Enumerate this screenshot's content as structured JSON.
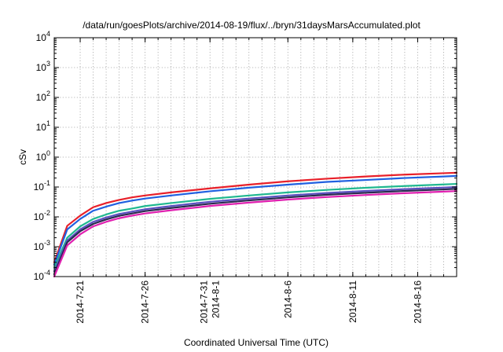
{
  "chart_data": {
    "type": "line",
    "title": "/data/run/goesPlots/archive/2014-08-19/flux/../bryn/31daysMarsAccumulated.plot",
    "xlabel": "Coordinated Universal Time (UTC)",
    "ylabel": "cSv",
    "x_type": "date",
    "xlim": [
      "2014-07-19",
      "2014-08-19"
    ],
    "ylim": [
      0.0001,
      10000
    ],
    "yscale": "log",
    "grid": true,
    "x_ticks": [
      {
        "date": "2014-07-21",
        "label": [
          "2014-7-21"
        ]
      },
      {
        "date": "2014-07-26",
        "label": [
          "2014-7-26"
        ]
      },
      {
        "date": "2014-07-31",
        "label": [
          "2014-7-31",
          "2014-8-1"
        ]
      },
      {
        "date": "2014-08-06",
        "label": [
          "2014-8-6"
        ]
      },
      {
        "date": "2014-08-11",
        "label": [
          "2014-8-11"
        ]
      },
      {
        "date": "2014-08-16",
        "label": [
          "2014-8-16"
        ]
      }
    ],
    "x_gridlines": [
      "2014-07-21",
      "2014-07-22",
      "2014-07-23",
      "2014-07-24",
      "2014-07-25",
      "2014-07-26",
      "2014-07-27",
      "2014-07-28",
      "2014-07-29",
      "2014-07-30",
      "2014-07-31",
      "2014-08-01",
      "2014-08-02",
      "2014-08-03",
      "2014-08-04",
      "2014-08-05",
      "2014-08-06",
      "2014-08-07",
      "2014-08-08",
      "2014-08-09",
      "2014-08-10",
      "2014-08-11",
      "2014-08-12",
      "2014-08-13",
      "2014-08-14",
      "2014-08-15",
      "2014-08-16",
      "2014-08-17",
      "2014-08-18"
    ],
    "y_ticks": [
      {
        "value": 0.0001,
        "base": "10",
        "exp": "-4"
      },
      {
        "value": 0.001,
        "base": "10",
        "exp": "-3"
      },
      {
        "value": 0.01,
        "base": "10",
        "exp": "-2"
      },
      {
        "value": 0.1,
        "base": "10",
        "exp": "-1"
      },
      {
        "value": 1,
        "base": "10",
        "exp": "0"
      },
      {
        "value": 10,
        "base": "10",
        "exp": "1"
      },
      {
        "value": 100,
        "base": "10",
        "exp": "2"
      },
      {
        "value": 1000,
        "base": "10",
        "exp": "3"
      },
      {
        "value": 10000,
        "base": "10",
        "exp": "4"
      }
    ],
    "x": [
      "2014-07-19",
      "2014-07-20",
      "2014-07-21",
      "2014-07-22",
      "2014-07-23",
      "2014-07-24",
      "2014-07-25",
      "2014-07-26",
      "2014-07-28",
      "2014-07-31",
      "2014-08-03",
      "2014-08-06",
      "2014-08-09",
      "2014-08-12",
      "2014-08-15",
      "2014-08-18",
      "2014-08-19"
    ],
    "series": [
      {
        "color": "#e8202a",
        "values": [
          0.0003,
          0.005,
          0.011,
          0.021,
          0.029,
          0.037,
          0.045,
          0.052,
          0.066,
          0.09,
          0.12,
          0.155,
          0.19,
          0.225,
          0.26,
          0.29,
          0.3
        ]
      },
      {
        "color": "#2060e0",
        "values": [
          0.00025,
          0.0038,
          0.0085,
          0.016,
          0.022,
          0.029,
          0.035,
          0.041,
          0.052,
          0.072,
          0.095,
          0.12,
          0.148,
          0.172,
          0.2,
          0.225,
          0.235
        ]
      },
      {
        "color": "#20b890",
        "values": [
          0.0002,
          0.002,
          0.0048,
          0.0085,
          0.012,
          0.016,
          0.019,
          0.023,
          0.029,
          0.04,
          0.052,
          0.066,
          0.08,
          0.094,
          0.108,
          0.122,
          0.127
        ]
      },
      {
        "color": "#5a4ec0",
        "values": [
          0.00015,
          0.0016,
          0.0038,
          0.0068,
          0.0095,
          0.0125,
          0.015,
          0.018,
          0.023,
          0.032,
          0.041,
          0.052,
          0.063,
          0.074,
          0.085,
          0.096,
          0.1
        ]
      },
      {
        "color": "#2a2a50",
        "values": [
          0.00012,
          0.0014,
          0.0033,
          0.0058,
          0.0082,
          0.0108,
          0.013,
          0.0156,
          0.0198,
          0.0275,
          0.0355,
          0.045,
          0.055,
          0.064,
          0.074,
          0.083,
          0.087
        ]
      },
      {
        "color": "#e020b0",
        "values": [
          0.0001,
          0.0011,
          0.0026,
          0.0048,
          0.0068,
          0.009,
          0.011,
          0.013,
          0.0166,
          0.0232,
          0.03,
          0.038,
          0.046,
          0.054,
          0.062,
          0.07,
          0.073
        ]
      }
    ]
  }
}
